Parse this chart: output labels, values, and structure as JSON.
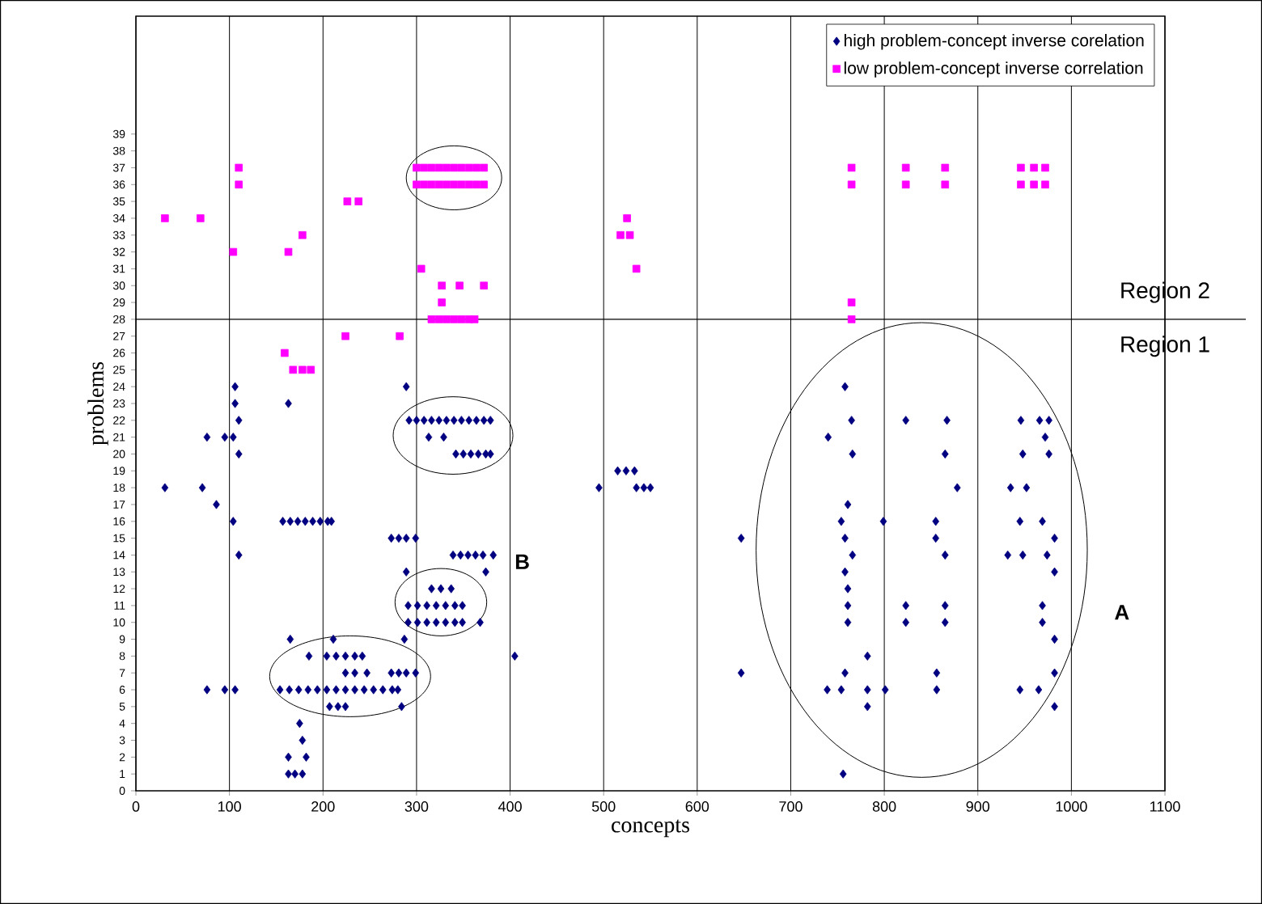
{
  "chart_data": {
    "type": "scatter",
    "xlabel": "concepts",
    "ylabel": "problems",
    "xlim": [
      0,
      1100
    ],
    "ylim": [
      0,
      46
    ],
    "xticks": [
      0,
      100,
      200,
      300,
      400,
      500,
      600,
      700,
      800,
      900,
      1000,
      1100
    ],
    "yticks": [
      0,
      1,
      2,
      3,
      4,
      5,
      6,
      7,
      8,
      9,
      10,
      11,
      12,
      13,
      14,
      15,
      16,
      17,
      18,
      19,
      20,
      21,
      22,
      23,
      24,
      25,
      26,
      27,
      28,
      29,
      30,
      31,
      32,
      33,
      34,
      35,
      36,
      37,
      38,
      39
    ],
    "grid": "x",
    "legend": "top right",
    "ref_lines": [
      {
        "axis": "y",
        "value": 28,
        "color": "#000000"
      }
    ],
    "annotations": [
      "Region 2",
      "Region 1",
      "A",
      "B"
    ],
    "series": [
      {
        "name": "high problem-concept inverse corelation",
        "color": "#000080",
        "marker": "diamond",
        "x": [
          106,
          289,
          758,
          106,
          163,
          110,
          292,
          300,
          308,
          316,
          324,
          332,
          340,
          348,
          356,
          364,
          372,
          379,
          765,
          823,
          867,
          946,
          966,
          976,
          76,
          95,
          104,
          313,
          329,
          740,
          972,
          110,
          342,
          350,
          358,
          366,
          374,
          379,
          766,
          865,
          948,
          976,
          515,
          524,
          533,
          31,
          71,
          495,
          535,
          543,
          550,
          878,
          935,
          952,
          86,
          761,
          104,
          157,
          165,
          173,
          181,
          189,
          197,
          205,
          209,
          754,
          799,
          855,
          945,
          969,
          273,
          281,
          289,
          299,
          647,
          758,
          855,
          982,
          110,
          339,
          347,
          355,
          363,
          371,
          382,
          766,
          865,
          932,
          948,
          974,
          289,
          374,
          758,
          982,
          316,
          326,
          337,
          761,
          291,
          301,
          311,
          321,
          331,
          341,
          349,
          761,
          823,
          865,
          969,
          291,
          301,
          311,
          321,
          331,
          341,
          349,
          368,
          761,
          823,
          865,
          969,
          165,
          211,
          287,
          982,
          185,
          204,
          214,
          224,
          234,
          242,
          405,
          782,
          224,
          234,
          247,
          273,
          281,
          289,
          299,
          647,
          758,
          856,
          982,
          76,
          95,
          106,
          154,
          164,
          174,
          184,
          194,
          204,
          214,
          224,
          234,
          244,
          254,
          264,
          274,
          280,
          739,
          754,
          782,
          801,
          856,
          945,
          965,
          207,
          216,
          224,
          284,
          782,
          982,
          175,
          178,
          163,
          182,
          163,
          170,
          178,
          756
        ],
        "values": [
          24,
          24,
          24,
          23,
          23,
          22,
          22,
          22,
          22,
          22,
          22,
          22,
          22,
          22,
          22,
          22,
          22,
          22,
          22,
          22,
          22,
          22,
          22,
          22,
          21,
          21,
          21,
          21,
          21,
          21,
          21,
          20,
          20,
          20,
          20,
          20,
          20,
          20,
          20,
          20,
          20,
          20,
          19,
          19,
          19,
          18,
          18,
          18,
          18,
          18,
          18,
          18,
          18,
          18,
          17,
          17,
          16,
          16,
          16,
          16,
          16,
          16,
          16,
          16,
          16,
          16,
          16,
          16,
          16,
          16,
          15,
          15,
          15,
          15,
          15,
          15,
          15,
          15,
          14,
          14,
          14,
          14,
          14,
          14,
          14,
          14,
          14,
          14,
          14,
          14,
          13,
          13,
          13,
          13,
          12,
          12,
          12,
          12,
          11,
          11,
          11,
          11,
          11,
          11,
          11,
          11,
          11,
          11,
          11,
          10,
          10,
          10,
          10,
          10,
          10,
          10,
          10,
          10,
          10,
          10,
          10,
          9,
          9,
          9,
          9,
          8,
          8,
          8,
          8,
          8,
          8,
          8,
          8,
          7,
          7,
          7,
          7,
          7,
          7,
          7,
          7,
          7,
          7,
          7,
          6,
          6,
          6,
          6,
          6,
          6,
          6,
          6,
          6,
          6,
          6,
          6,
          6,
          6,
          6,
          6,
          6,
          6,
          6,
          6,
          6,
          6,
          6,
          6,
          5,
          5,
          5,
          5,
          5,
          5,
          4,
          3,
          2,
          2,
          1,
          1,
          1,
          1
        ]
      },
      {
        "name": "low problem-concept inverse correlation",
        "color": "#ff00ff",
        "marker": "square",
        "x": [
          110,
          300,
          308,
          316,
          324,
          332,
          340,
          348,
          356,
          364,
          372,
          765,
          823,
          865,
          946,
          960,
          972,
          110,
          300,
          308,
          316,
          324,
          332,
          340,
          348,
          356,
          364,
          372,
          765,
          823,
          865,
          946,
          960,
          972,
          226,
          238,
          31,
          69,
          525,
          178,
          518,
          528,
          104,
          163,
          305,
          535,
          327,
          346,
          372,
          327,
          765,
          316,
          324,
          332,
          340,
          348,
          356,
          362,
          765,
          224,
          282,
          159,
          168,
          178,
          187
        ],
        "values": [
          37,
          37,
          37,
          37,
          37,
          37,
          37,
          37,
          37,
          37,
          37,
          37,
          37,
          37,
          37,
          37,
          37,
          36,
          36,
          36,
          36,
          36,
          36,
          36,
          36,
          36,
          36,
          36,
          36,
          36,
          36,
          36,
          36,
          36,
          35,
          35,
          34,
          34,
          34,
          33,
          33,
          33,
          32,
          32,
          31,
          31,
          30,
          30,
          30,
          29,
          29,
          28,
          28,
          28,
          28,
          28,
          28,
          28,
          28,
          27,
          27,
          26,
          25,
          25,
          25
        ]
      }
    ]
  }
}
